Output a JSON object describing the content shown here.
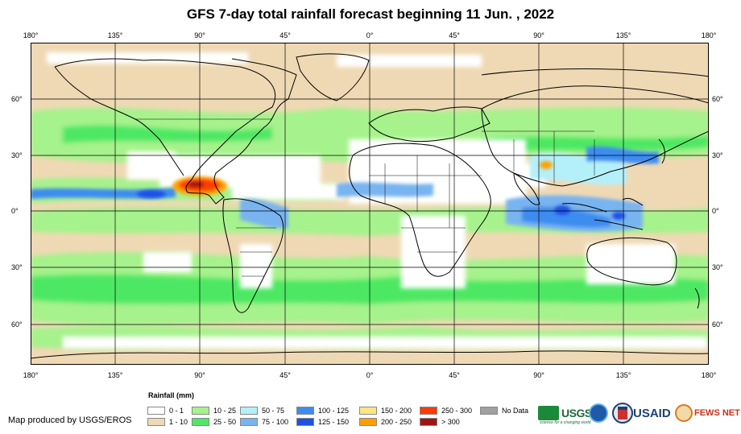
{
  "title": "GFS 7-day total rainfall forecast beginning 11 Jun. , 2022",
  "lon_labels": [
    "180°",
    "135°",
    "90°",
    "45°",
    "0°",
    "45°",
    "90°",
    "135°",
    "180°"
  ],
  "lat_labels": [
    "60°",
    "30°",
    "0°",
    "30°",
    "60°"
  ],
  "legend": {
    "title": "Rainfall (mm)",
    "items": [
      {
        "label": "0 - 1",
        "color": "#ffffff"
      },
      {
        "label": "1 - 10",
        "color": "#efd9b4"
      },
      {
        "label": "10 - 25",
        "color": "#a6f28c"
      },
      {
        "label": "25 - 50",
        "color": "#4ee864"
      },
      {
        "label": "50 - 75",
        "color": "#b4f0fa"
      },
      {
        "label": "75 - 100",
        "color": "#78b4f0"
      },
      {
        "label": "100 - 125",
        "color": "#3c8cf0"
      },
      {
        "label": "125 - 150",
        "color": "#1e50e6"
      },
      {
        "label": "150 - 200",
        "color": "#ffe682"
      },
      {
        "label": "200 - 250",
        "color": "#ffa000"
      },
      {
        "label": "250 - 300",
        "color": "#ff3c00"
      },
      {
        "label": "> 300",
        "color": "#a01414"
      },
      {
        "label": "No Data",
        "color": "#a0a0a0"
      }
    ]
  },
  "credit": "Map produced by USGS/EROS",
  "logos": {
    "usgs": "USGS",
    "usgs_tagline": "science for a changing world",
    "usaid": "USAID",
    "fews": "FEWS NET"
  }
}
